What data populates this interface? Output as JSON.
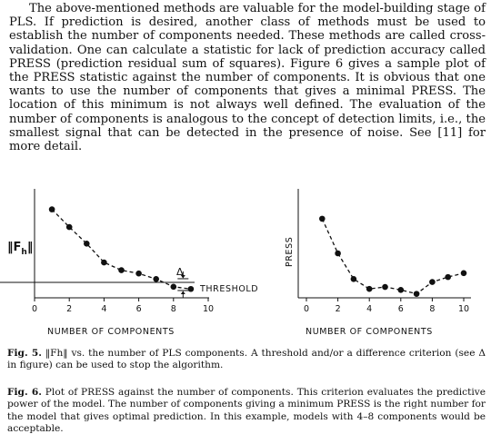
{
  "body_text": "The above-mentioned methods are valuable for the model-building stage of PLS. If prediction is desired, another class of methods must be used to establish the number of components needed. These methods are called cross-validation. One can calculate a statistic for lack of prediction accuracy called PRESS (prediction residual sum of squares). Figure 6 gives a sample plot of the PRESS statistic against the number of components. It is obvious that one wants to use the number of components that gives a minimal PRESS. The location of this minimum is not always well defined. The evaluation of the number of components is analogous to the concept of detection limits, i.e., the smallest signal that can be detected in the presence of noise. See [11] for more detail.",
  "figure5": {
    "y_label": "‖F",
    "y_label_sub": "h",
    "x_label": "NUMBER OF COMPONENTS",
    "threshold_label": "THRESHOLD",
    "delta_label": "Δ",
    "caption_label": "Fig. 5.",
    "caption_text": "‖Fh‖ vs. the number of PLS components. A threshold and/or a difference criterion (see Δ in figure) can be used to stop the algorithm."
  },
  "figure6": {
    "y_label": "PRESS",
    "x_label": "NUMBER OF COMPONENTS",
    "caption_label": "Fig. 6.",
    "caption_text": "Plot of PRESS against the number of components. This criterion evaluates the predictive power of the model. The number of components giving a minimum PRESS is the right number for the model that gives optimal prediction. In this example, models with 4–8 components would be acceptable."
  },
  "chart_data": [
    {
      "type": "line",
      "xlabel": "NUMBER OF COMPONENTS",
      "ylabel": "‖Fh‖",
      "xlim": [
        0,
        10
      ],
      "x_ticks": [
        0,
        2,
        4,
        6,
        8,
        10
      ],
      "threshold": 1.4,
      "series": [
        {
          "x": [
            1,
            2,
            3,
            4,
            5,
            6,
            7,
            8,
            9
          ],
          "y": [
            8.0,
            6.4,
            4.9,
            3.2,
            2.5,
            2.2,
            1.7,
            1.0,
            0.8
          ]
        }
      ]
    },
    {
      "type": "line",
      "xlabel": "NUMBER OF COMPONENTS",
      "ylabel": "PRESS",
      "xlim": [
        0,
        10
      ],
      "x_ticks": [
        0,
        2,
        4,
        6,
        8,
        10
      ],
      "series": [
        {
          "x": [
            1,
            2,
            3,
            4,
            5,
            6,
            7,
            8,
            9,
            10
          ],
          "y": [
            8.0,
            4.5,
            1.9,
            0.9,
            1.1,
            0.8,
            0.4,
            1.6,
            2.1,
            2.5
          ]
        }
      ]
    }
  ]
}
